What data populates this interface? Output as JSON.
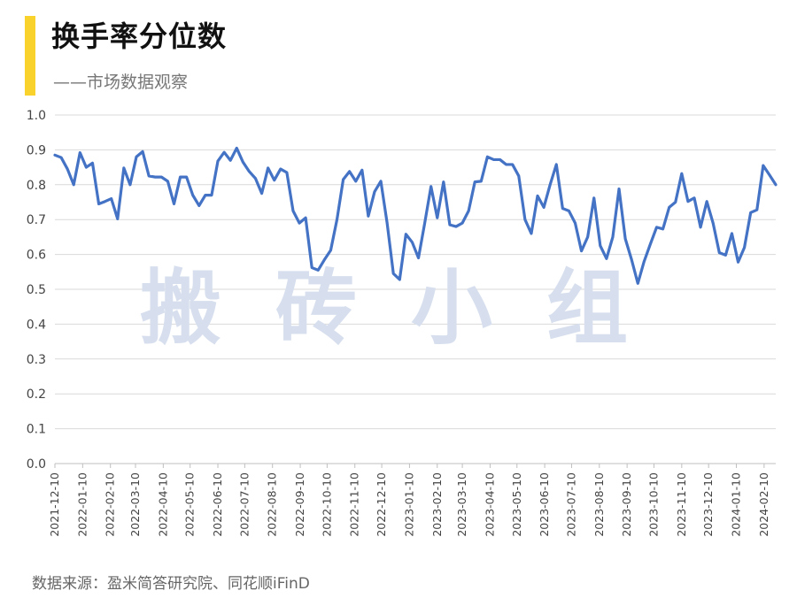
{
  "header": {
    "title": "换手率分位数",
    "subtitle": "——市场数据观察",
    "accent_color": "#f9d32c"
  },
  "watermark": [
    "搬",
    "砖",
    "小",
    "组"
  ],
  "footer": {
    "source": "数据来源：盈米简答研究院、同花顺iFinD"
  },
  "chart_data": {
    "type": "line",
    "title": "换手率分位数",
    "ylim": [
      0,
      1.0
    ],
    "y_ticks": [
      "0.0",
      "0.1",
      "0.2",
      "0.3",
      "0.4",
      "0.5",
      "0.6",
      "0.7",
      "0.8",
      "0.9",
      "1.0"
    ],
    "grid": true,
    "line_color": "#4472c4",
    "x_start": "2021-12-10",
    "x_labels": [
      "2021-12-10",
      "2022-01-10",
      "2022-02-10",
      "2022-03-10",
      "2022-04-10",
      "2022-05-10",
      "2022-06-10",
      "2022-07-10",
      "2022-08-10",
      "2022-09-10",
      "2022-10-10",
      "2022-11-10",
      "2022-12-10",
      "2023-01-10",
      "2023-02-10",
      "2023-03-10",
      "2023-04-10",
      "2023-05-10",
      "2023-06-10",
      "2023-07-10",
      "2023-08-10",
      "2023-09-10",
      "2023-10-10",
      "2023-11-10",
      "2023-12-10",
      "2024-01-10",
      "2024-02-10"
    ],
    "series": [
      {
        "values": [
          0.885,
          0.878,
          0.845,
          0.8,
          0.892,
          0.85,
          0.862,
          0.745,
          0.752,
          0.76,
          0.702,
          0.848,
          0.8,
          0.88,
          0.895,
          0.825,
          0.822,
          0.822,
          0.81,
          0.745,
          0.822,
          0.822,
          0.77,
          0.74,
          0.77,
          0.77,
          0.868,
          0.893,
          0.87,
          0.905,
          0.865,
          0.838,
          0.818,
          0.775,
          0.848,
          0.813,
          0.845,
          0.835,
          0.725,
          0.69,
          0.705,
          0.562,
          0.555,
          0.585,
          0.612,
          0.7,
          0.815,
          0.838,
          0.81,
          0.842,
          0.71,
          0.78,
          0.81,
          0.69,
          0.545,
          0.528,
          0.658,
          0.635,
          0.59,
          0.69,
          0.795,
          0.705,
          0.808,
          0.685,
          0.68,
          0.69,
          0.725,
          0.808,
          0.81,
          0.88,
          0.872,
          0.872,
          0.858,
          0.858,
          0.825,
          0.7,
          0.66,
          0.768,
          0.735,
          0.8,
          0.858,
          0.732,
          0.725,
          0.69,
          0.61,
          0.65,
          0.762,
          0.625,
          0.588,
          0.65,
          0.788,
          0.645,
          0.585,
          0.517,
          0.58,
          0.63,
          0.678,
          0.673,
          0.735,
          0.75,
          0.832,
          0.752,
          0.762,
          0.678,
          0.752,
          0.69,
          0.605,
          0.598,
          0.66,
          0.578,
          0.62,
          0.72,
          0.728,
          0.855,
          0.828,
          0.8
        ]
      }
    ]
  }
}
